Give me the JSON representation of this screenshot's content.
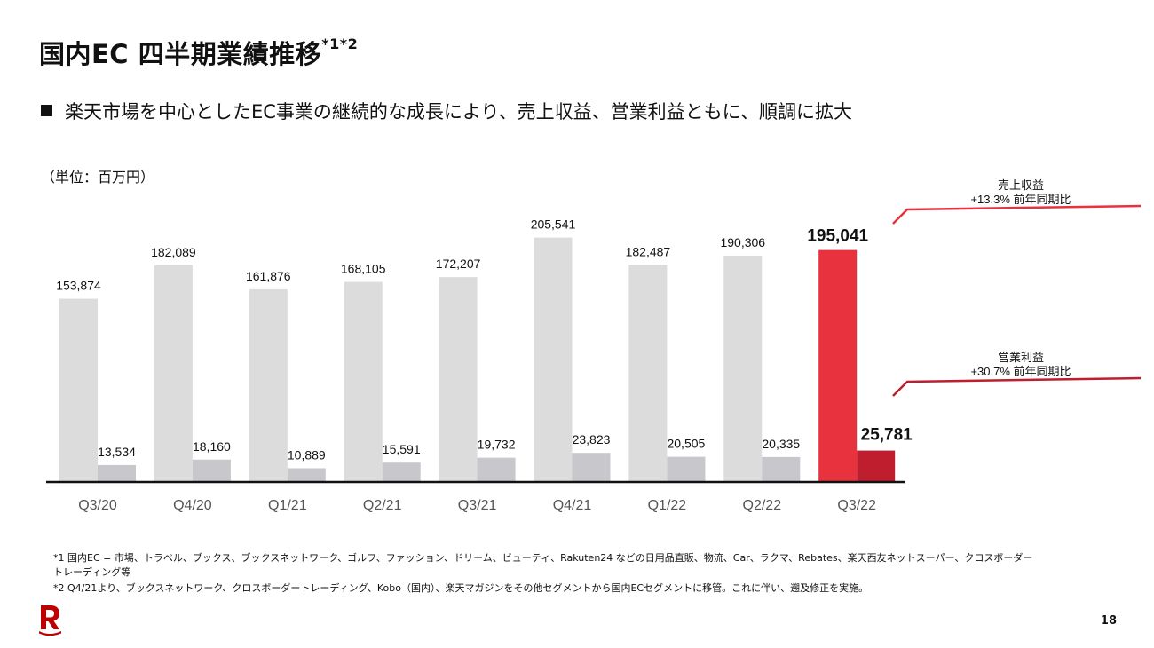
{
  "header": {
    "title": "国内EC 四半期業績推移",
    "title_sup": "*1*2",
    "bullet": "楽天市場を中心としたEC事業の継続的な成長により、売上収益、営業利益ともに、順調に拡大",
    "unit": "（単位：百万円）"
  },
  "chart_data": {
    "type": "bar",
    "categories": [
      "Q3/20",
      "Q4/20",
      "Q1/21",
      "Q2/21",
      "Q3/21",
      "Q4/21",
      "Q1/22",
      "Q2/22",
      "Q3/22"
    ],
    "series": [
      {
        "name": "売上収益",
        "values": [
          153874,
          182089,
          161876,
          168105,
          172207,
          205541,
          182487,
          190306,
          195041
        ],
        "labels": [
          "153,874",
          "182,089",
          "161,876",
          "168,105",
          "172,207",
          "205,541",
          "182,487",
          "190,306",
          "195,041"
        ]
      },
      {
        "name": "営業利益",
        "values": [
          13534,
          18160,
          10889,
          15591,
          19732,
          23823,
          20505,
          20335,
          25781
        ],
        "labels": [
          "13,534",
          "18,160",
          "10,889",
          "15,591",
          "19,732",
          "23,823",
          "20,505",
          "20,335",
          "25,781"
        ]
      }
    ],
    "highlight_category": "Q3/22",
    "colors": {
      "revenue": "#dcdcdc",
      "profit": "#c8c8cc",
      "revenue_hl": "#e8323e",
      "profit_hl": "#be1e2d",
      "callout": "#e8323e"
    },
    "annotations": [
      {
        "series": "売上収益",
        "line1": "売上収益",
        "line2": "+13.3% 前年同期比"
      },
      {
        "series": "営業利益",
        "line1": "営業利益",
        "line2": "+30.7% 前年同期比"
      }
    ]
  },
  "footnotes": {
    "note1_line1": "*1 国内EC = 市場、トラベル、ブックス、ブックスネットワーク、ゴルフ、ファッション、ドリーム、ビューティ、Rakuten24 などの日用品直販、物流、Car、ラクマ、Rebates、楽天西友ネットスーパー、クロスボーダー",
    "note1_line2": "トレーディング等",
    "note2": "*2 Q4/21より、ブックスネットワーク、クロスボーダートレーディング、Kobo（国内）、楽天マガジンをその他セグメントから国内ECセグメントに移管。これに伴い、遡及修正を実施。"
  },
  "page": {
    "number": "18",
    "logo": "rakuten-r-logo"
  }
}
